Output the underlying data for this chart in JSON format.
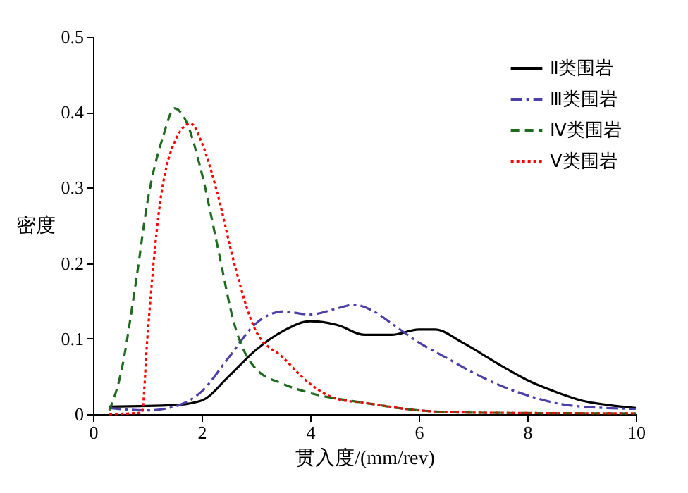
{
  "chart_data": {
    "type": "line",
    "xlabel": "贯入度/(mm/rev)",
    "ylabel": "密度",
    "xlim": [
      0,
      10
    ],
    "xticks": [
      0,
      2,
      4,
      6,
      8,
      10
    ],
    "ylim": [
      0,
      0.5
    ],
    "yticks": [
      0,
      0.1,
      0.2,
      0.3,
      0.4,
      0.5
    ],
    "grid": false,
    "legend": "top right",
    "marker": "none",
    "series": [
      {
        "name": "Ⅱ类围岩",
        "color": "#000000",
        "line_style": "solid",
        "x": [
          0.3,
          1.5,
          2,
          2.5,
          3,
          3.5,
          4,
          4.5,
          5,
          5.5,
          6,
          6.3,
          6.8,
          7.5,
          8,
          8.5,
          9,
          9.5,
          10
        ],
        "values": [
          0.01,
          0.012,
          0.018,
          0.05,
          0.085,
          0.11,
          0.123,
          0.118,
          0.105,
          0.105,
          0.112,
          0.112,
          0.095,
          0.065,
          0.045,
          0.03,
          0.018,
          0.012,
          0.008
        ]
      },
      {
        "name": "Ⅲ类围岩",
        "color": "#4b3fa8",
        "line_style": "dashdot",
        "x": [
          0.3,
          1,
          1.5,
          2,
          2.5,
          3,
          3.5,
          4,
          4.5,
          4.8,
          5.2,
          5.5,
          6,
          6.5,
          7,
          7.5,
          8,
          8.5,
          9,
          10
        ],
        "values": [
          0.008,
          0.005,
          0.01,
          0.03,
          0.075,
          0.12,
          0.136,
          0.132,
          0.14,
          0.145,
          0.135,
          0.12,
          0.095,
          0.075,
          0.055,
          0.038,
          0.025,
          0.015,
          0.01,
          0.007
        ]
      },
      {
        "name": "Ⅳ类围岩",
        "color": "#1e6b1e",
        "line_style": "dashed",
        "x": [
          0.3,
          0.5,
          0.8,
          1,
          1.3,
          1.5,
          1.7,
          2,
          2.3,
          2.6,
          3,
          3.5,
          4,
          5,
          6,
          7,
          10
        ],
        "values": [
          0.005,
          0.05,
          0.18,
          0.28,
          0.37,
          0.405,
          0.39,
          0.32,
          0.22,
          0.12,
          0.06,
          0.04,
          0.028,
          0.015,
          0.005,
          0.002,
          0.001
        ]
      },
      {
        "name": "Ⅴ类围岩",
        "color": "#ff0000",
        "line_style": "dotted",
        "x": [
          0.3,
          0.9,
          1,
          1.2,
          1.5,
          1.8,
          2,
          2.3,
          2.6,
          3,
          3.5,
          4,
          4.5,
          5,
          6,
          7,
          10
        ],
        "values": [
          0.0,
          0.002,
          0.1,
          0.26,
          0.36,
          0.385,
          0.36,
          0.29,
          0.2,
          0.11,
          0.075,
          0.04,
          0.02,
          0.015,
          0.005,
          0.002,
          0.001
        ]
      }
    ]
  }
}
